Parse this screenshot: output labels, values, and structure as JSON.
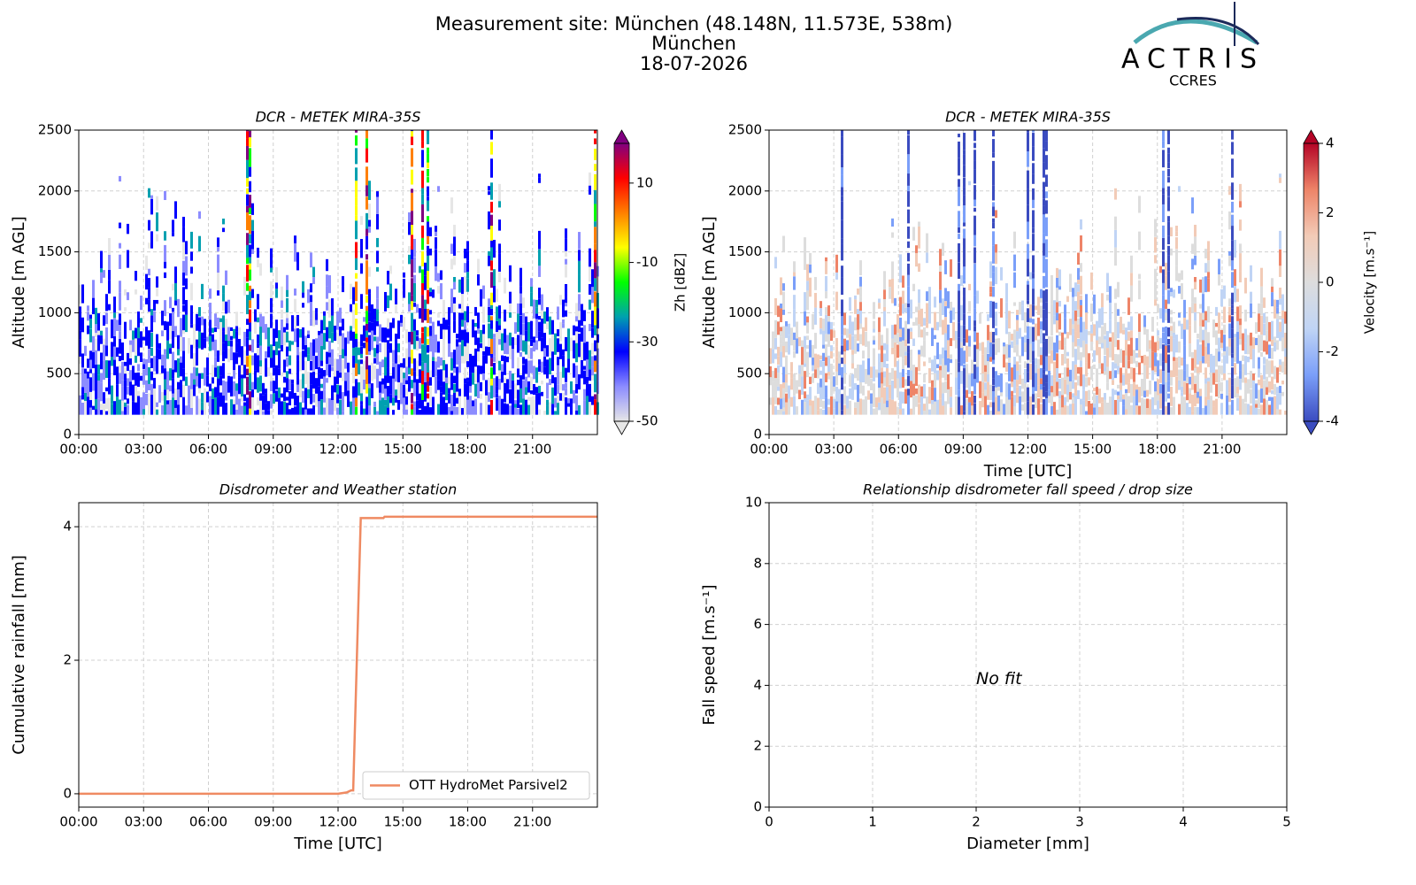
{
  "header": {
    "title": "Measurement site: München (48.148N, 11.573E, 538m)",
    "subtitle": "München",
    "date": "18-07-2026"
  },
  "logo": {
    "name": "ACTRIS",
    "subname": "CCRES"
  },
  "chart_data": [
    {
      "type": "heatmap",
      "title": "DCR - METEK MIRA-35S",
      "ylabel": "Altitude [m AGL]",
      "xlim": [
        0,
        24
      ],
      "xticks": [
        {
          "value": 0,
          "label": "00:00"
        },
        {
          "value": 3,
          "label": "03:00"
        },
        {
          "value": 6,
          "label": "06:00"
        },
        {
          "value": 9,
          "label": "09:00"
        },
        {
          "value": 12,
          "label": "12:00"
        },
        {
          "value": 15,
          "label": "15:00"
        },
        {
          "value": 18,
          "label": "18:00"
        },
        {
          "value": 21,
          "label": "21:00"
        }
      ],
      "ylim": [
        0,
        2500
      ],
      "yticks": [
        0,
        500,
        1000,
        1500,
        2000,
        2500
      ],
      "grid": true,
      "colorbar": {
        "label": "Zh [dBZ]",
        "lim": [
          -50,
          20
        ],
        "ticks": [
          -50,
          -30,
          -10,
          10
        ],
        "colors": [
          "#e6e6e6",
          "#8c8cff",
          "#0000ff",
          "#00a0b0",
          "#00ff00",
          "#ffff00",
          "#ff8000",
          "#ff0000",
          "#800080"
        ]
      }
    },
    {
      "type": "heatmap",
      "title": "DCR - METEK MIRA-35S",
      "ylabel": "Altitude [m AGL]",
      "xlabel": "Time [UTC]",
      "xlim": [
        0,
        24
      ],
      "xticks": [
        {
          "value": 0,
          "label": "00:00"
        },
        {
          "value": 3,
          "label": "03:00"
        },
        {
          "value": 6,
          "label": "06:00"
        },
        {
          "value": 9,
          "label": "09:00"
        },
        {
          "value": 12,
          "label": "12:00"
        },
        {
          "value": 15,
          "label": "15:00"
        },
        {
          "value": 18,
          "label": "18:00"
        },
        {
          "value": 21,
          "label": "21:00"
        }
      ],
      "ylim": [
        0,
        2500
      ],
      "yticks": [
        0,
        500,
        1000,
        1500,
        2000,
        2500
      ],
      "grid": true,
      "colorbar": {
        "label": "Velocity [m.s⁻¹]",
        "lim": [
          -4,
          4
        ],
        "ticks": [
          -4,
          -2,
          0,
          2,
          4
        ],
        "colors": [
          "#3b4cc0",
          "#7b9ff9",
          "#c0d4f5",
          "#dddddd",
          "#f2cbb7",
          "#ee8468",
          "#b40426"
        ]
      }
    },
    {
      "type": "line",
      "title": "Disdrometer and Weather station",
      "ylabel": "Cumulative rainfall [mm]",
      "xlabel": "Time [UTC]",
      "xlim": [
        0,
        24
      ],
      "xticks": [
        {
          "value": 0,
          "label": "00:00"
        },
        {
          "value": 3,
          "label": "03:00"
        },
        {
          "value": 6,
          "label": "06:00"
        },
        {
          "value": 9,
          "label": "09:00"
        },
        {
          "value": 12,
          "label": "12:00"
        },
        {
          "value": 15,
          "label": "15:00"
        },
        {
          "value": 18,
          "label": "18:00"
        },
        {
          "value": 21,
          "label": "21:00"
        }
      ],
      "ylim": [
        -0.2,
        4.36
      ],
      "yticks": [
        0,
        2,
        4
      ],
      "grid": true,
      "legend": "lower right",
      "series": [
        {
          "name": "OTT HydroMet Parsivel2",
          "color": "#ef8a62",
          "x": [
            0,
            12,
            12.4,
            12.6,
            12.7,
            13.05,
            14.1,
            14.15,
            24
          ],
          "values": [
            0,
            0,
            0.02,
            0.05,
            0.05,
            4.13,
            4.13,
            4.15,
            4.15
          ]
        }
      ]
    },
    {
      "type": "scatter",
      "title": "Relationship disdrometer fall speed / drop size",
      "ylabel": "Fall speed [m.s⁻¹]",
      "xlabel": "Diameter [mm]",
      "xlim": [
        0,
        5
      ],
      "xticks": [
        0,
        1,
        2,
        3,
        4,
        5
      ],
      "ylim": [
        0,
        10
      ],
      "yticks": [
        0,
        2,
        4,
        6,
        8,
        10
      ],
      "grid": true,
      "annotation": "No fit"
    }
  ]
}
